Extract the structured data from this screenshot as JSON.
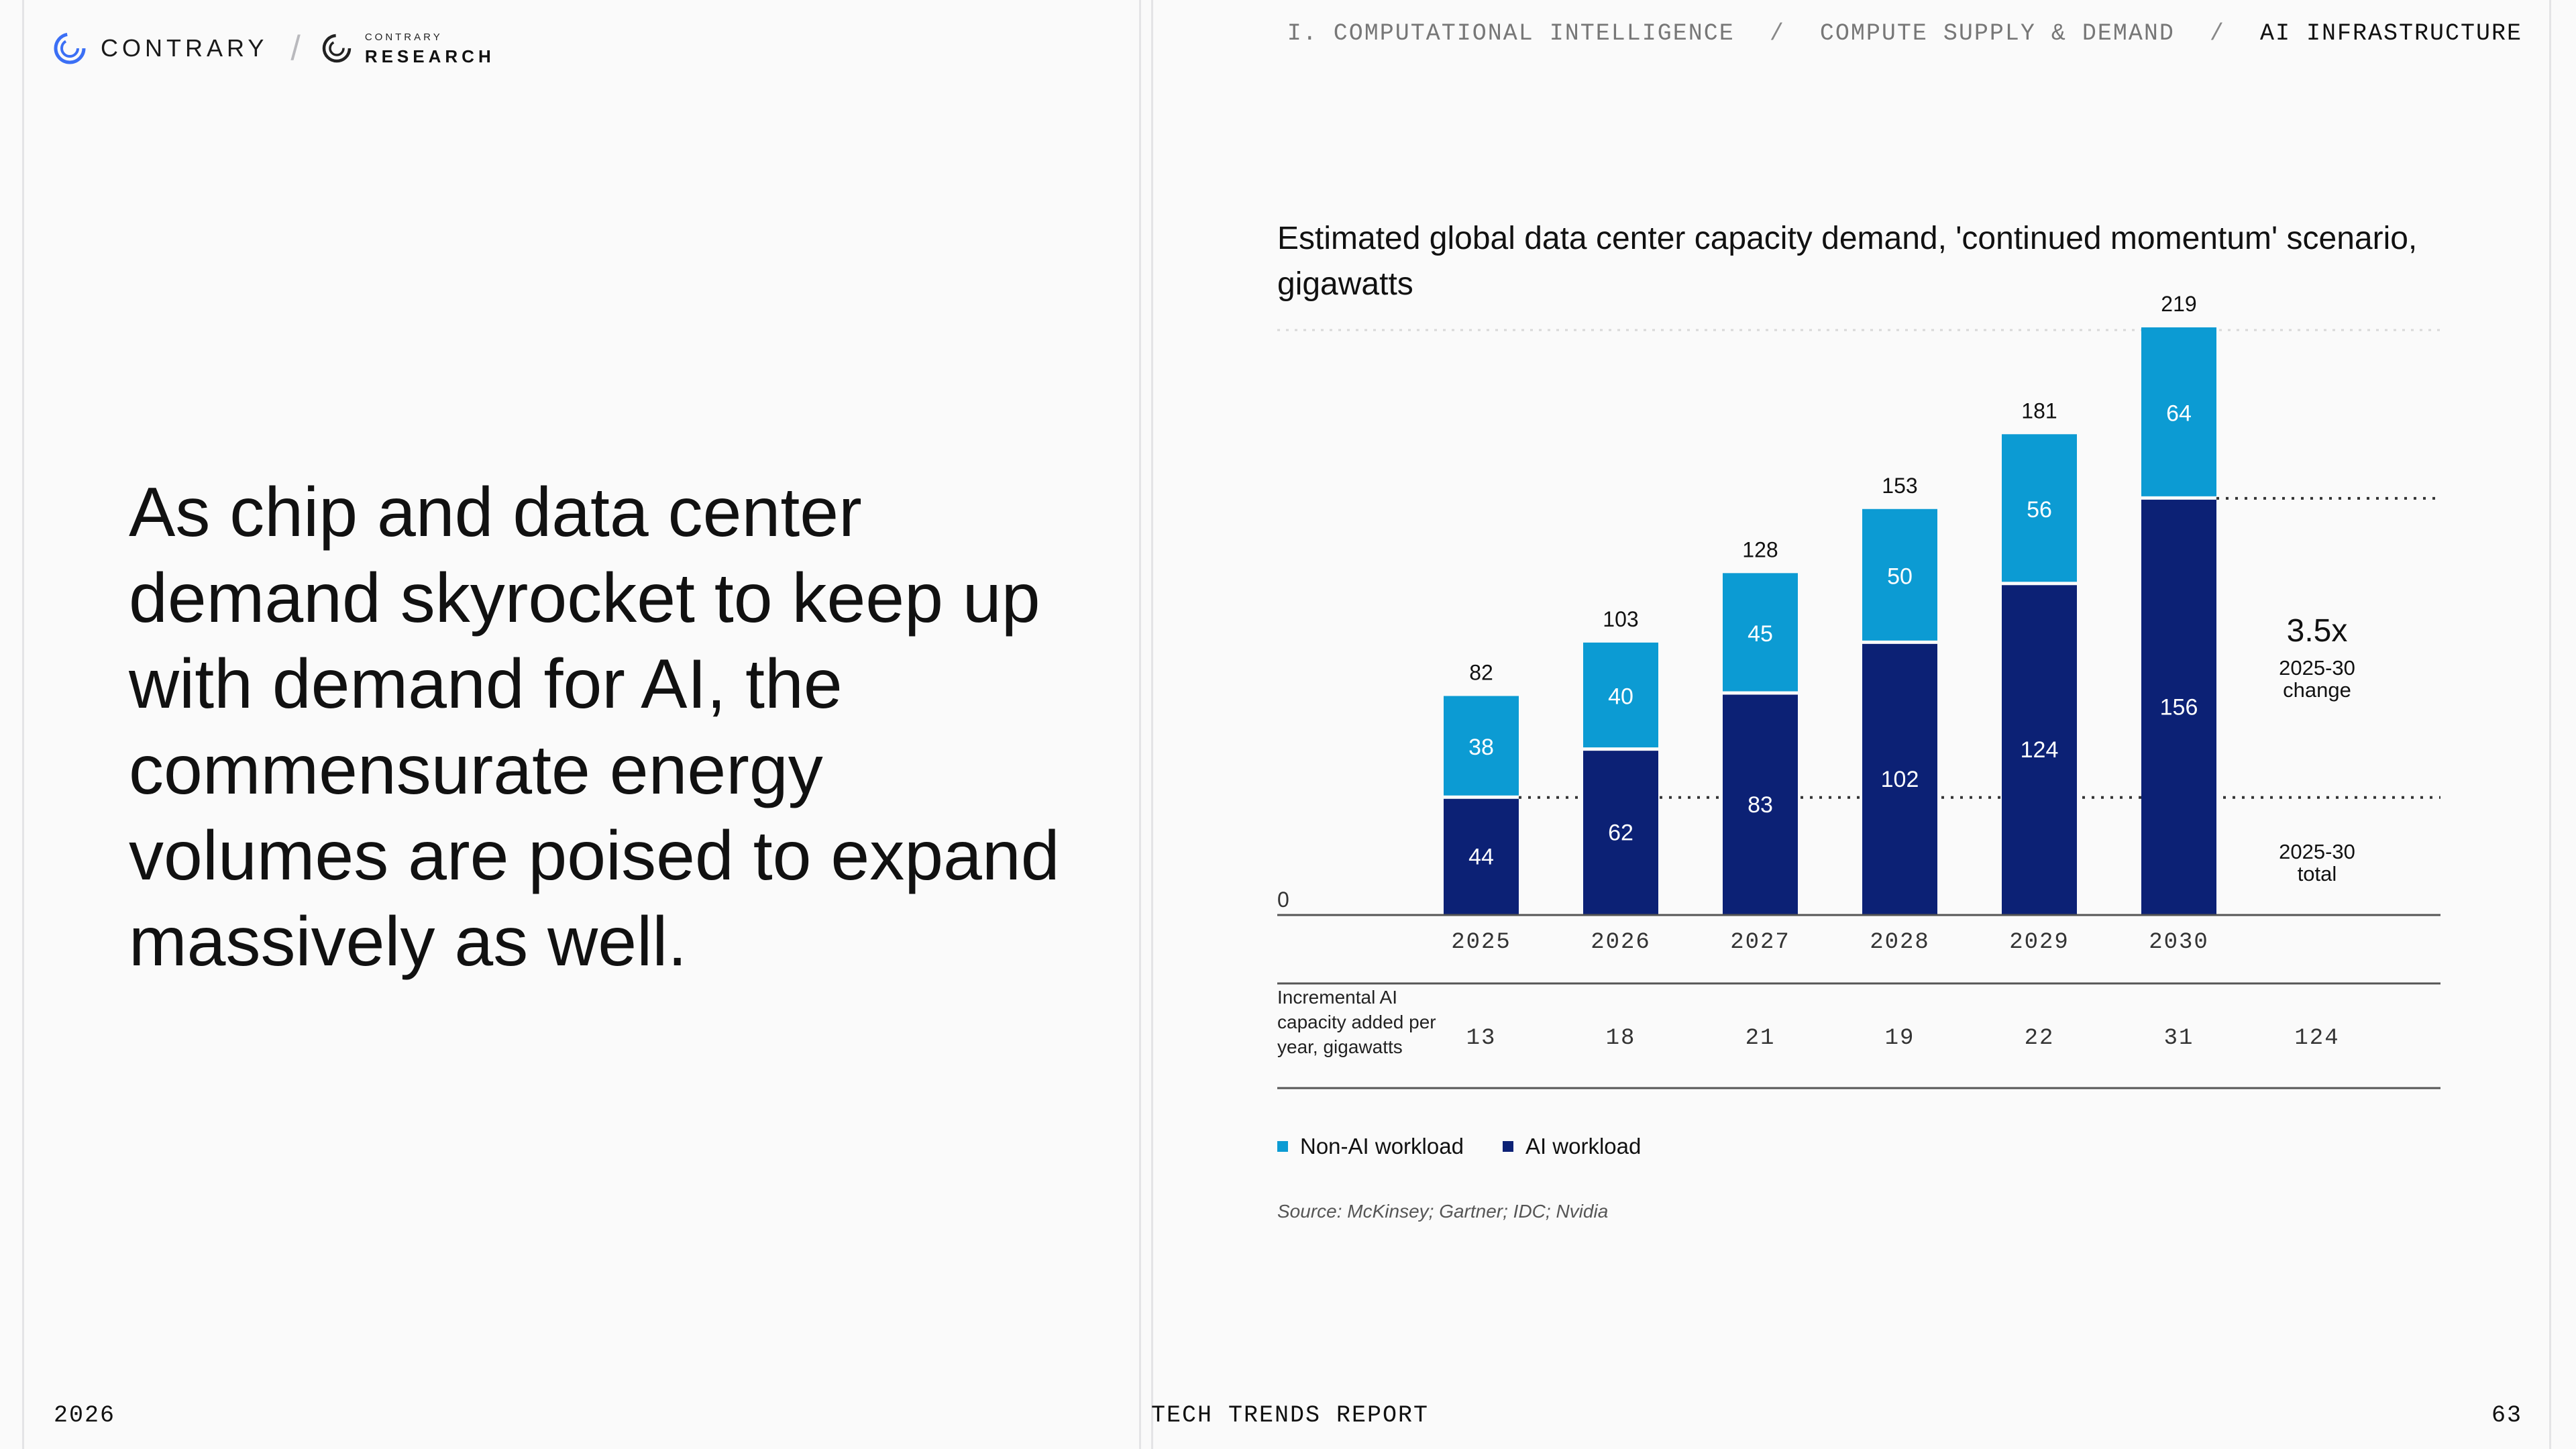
{
  "header": {
    "brand": "CONTRARY",
    "research_small": "CONTRARY",
    "research_big": "RESEARCH",
    "breadcrumb": [
      "I. COMPUTATIONAL INTELLIGENCE",
      "COMPUTE SUPPLY & DEMAND",
      "AI INFRASTRUCTURE"
    ],
    "separator": "/"
  },
  "headline": "As chip and data center demand skyrocket to keep up with demand for AI, the commensurate energy volumes are poised to expand massively as well.",
  "chart_title": "Estimated global data center capacity demand, 'continued momentum' scenario, gigawatts",
  "incremental_label": "Incremental AI capacity added per year, gigawatts",
  "legend": {
    "non_ai": "Non-AI workload",
    "ai": "AI workload"
  },
  "source": "Source: McKinsey; Gartner; IDC; Nvidia",
  "colors": {
    "non_ai": "#0c9bd3",
    "ai": "#0c2175",
    "axis": "#555555",
    "grid": "#d8d8d8"
  },
  "chart_data": {
    "type": "bar",
    "stacked": true,
    "categories": [
      "2025",
      "2026",
      "2027",
      "2028",
      "2029",
      "2030"
    ],
    "series": [
      {
        "name": "AI workload",
        "values": [
          44,
          62,
          83,
          102,
          124,
          156
        ]
      },
      {
        "name": "Non-AI workload",
        "values": [
          38,
          40,
          45,
          50,
          56,
          64
        ]
      }
    ],
    "totals": [
      82,
      103,
      128,
      153,
      181,
      219
    ],
    "ylim": [
      0,
      219
    ],
    "zero_label": "0",
    "incremental": {
      "values": [
        "13",
        "18",
        "21",
        "19",
        "22",
        "31"
      ],
      "total": "124"
    },
    "annotations": {
      "change_value": "3.5x",
      "change_label_line1": "2025-30",
      "change_label_line2": "change",
      "total_label_line1": "2025-30",
      "total_label_line2": "total"
    }
  },
  "footer": {
    "year": "2026",
    "report": "TECH TRENDS REPORT",
    "page": "63"
  }
}
